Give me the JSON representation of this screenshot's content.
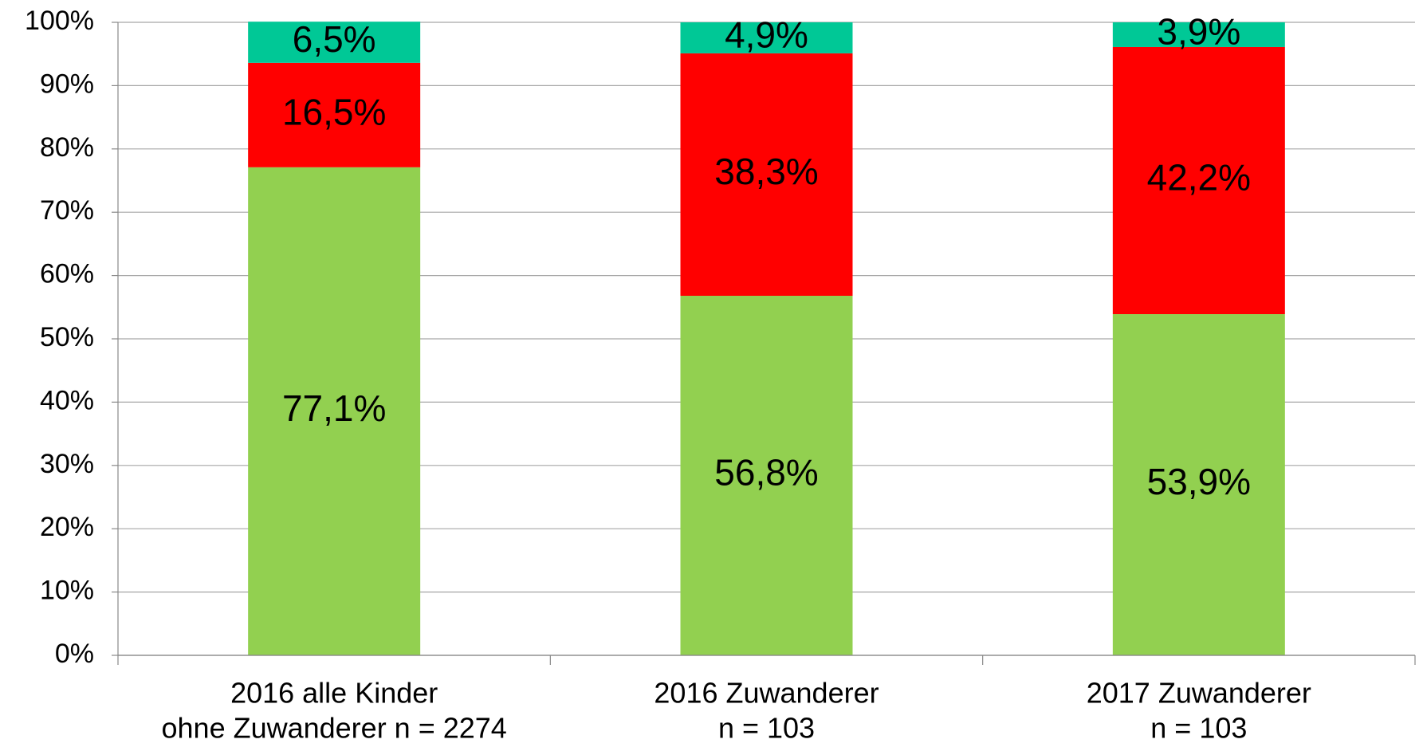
{
  "chart_data": {
    "type": "stacked_bar",
    "categories": [
      [
        "2016 alle Kinder",
        "ohne Zuwanderer n = 2274"
      ],
      [
        "2016 Zuwanderer",
        "n = 103"
      ],
      [
        "2017 Zuwanderer",
        "n = 103"
      ]
    ],
    "series": [
      {
        "color": "#92d050",
        "values": [
          77.1,
          56.8,
          53.9
        ],
        "value_labels": [
          "77,1%",
          "56,8%",
          "53,9%"
        ]
      },
      {
        "color": "#ff0000",
        "values": [
          16.5,
          38.3,
          42.2
        ],
        "value_labels": [
          "16,5%",
          "38,3%",
          "42,2%"
        ]
      },
      {
        "color": "#00c896",
        "values": [
          6.5,
          4.9,
          3.9
        ],
        "value_labels": [
          "6,5%",
          "4,9%",
          "3,9%"
        ]
      }
    ],
    "ylim": [
      0,
      100
    ],
    "yticks": [
      {
        "value": 0,
        "label": "0%"
      },
      {
        "value": 10,
        "label": "10%"
      },
      {
        "value": 20,
        "label": "20%"
      },
      {
        "value": 30,
        "label": "30%"
      },
      {
        "value": 40,
        "label": "40%"
      },
      {
        "value": 50,
        "label": "50%"
      },
      {
        "value": 60,
        "label": "60%"
      },
      {
        "value": 70,
        "label": "70%"
      },
      {
        "value": 80,
        "label": "80%"
      },
      {
        "value": 90,
        "label": "90%"
      },
      {
        "value": 100,
        "label": "100%"
      }
    ],
    "grid": true
  }
}
